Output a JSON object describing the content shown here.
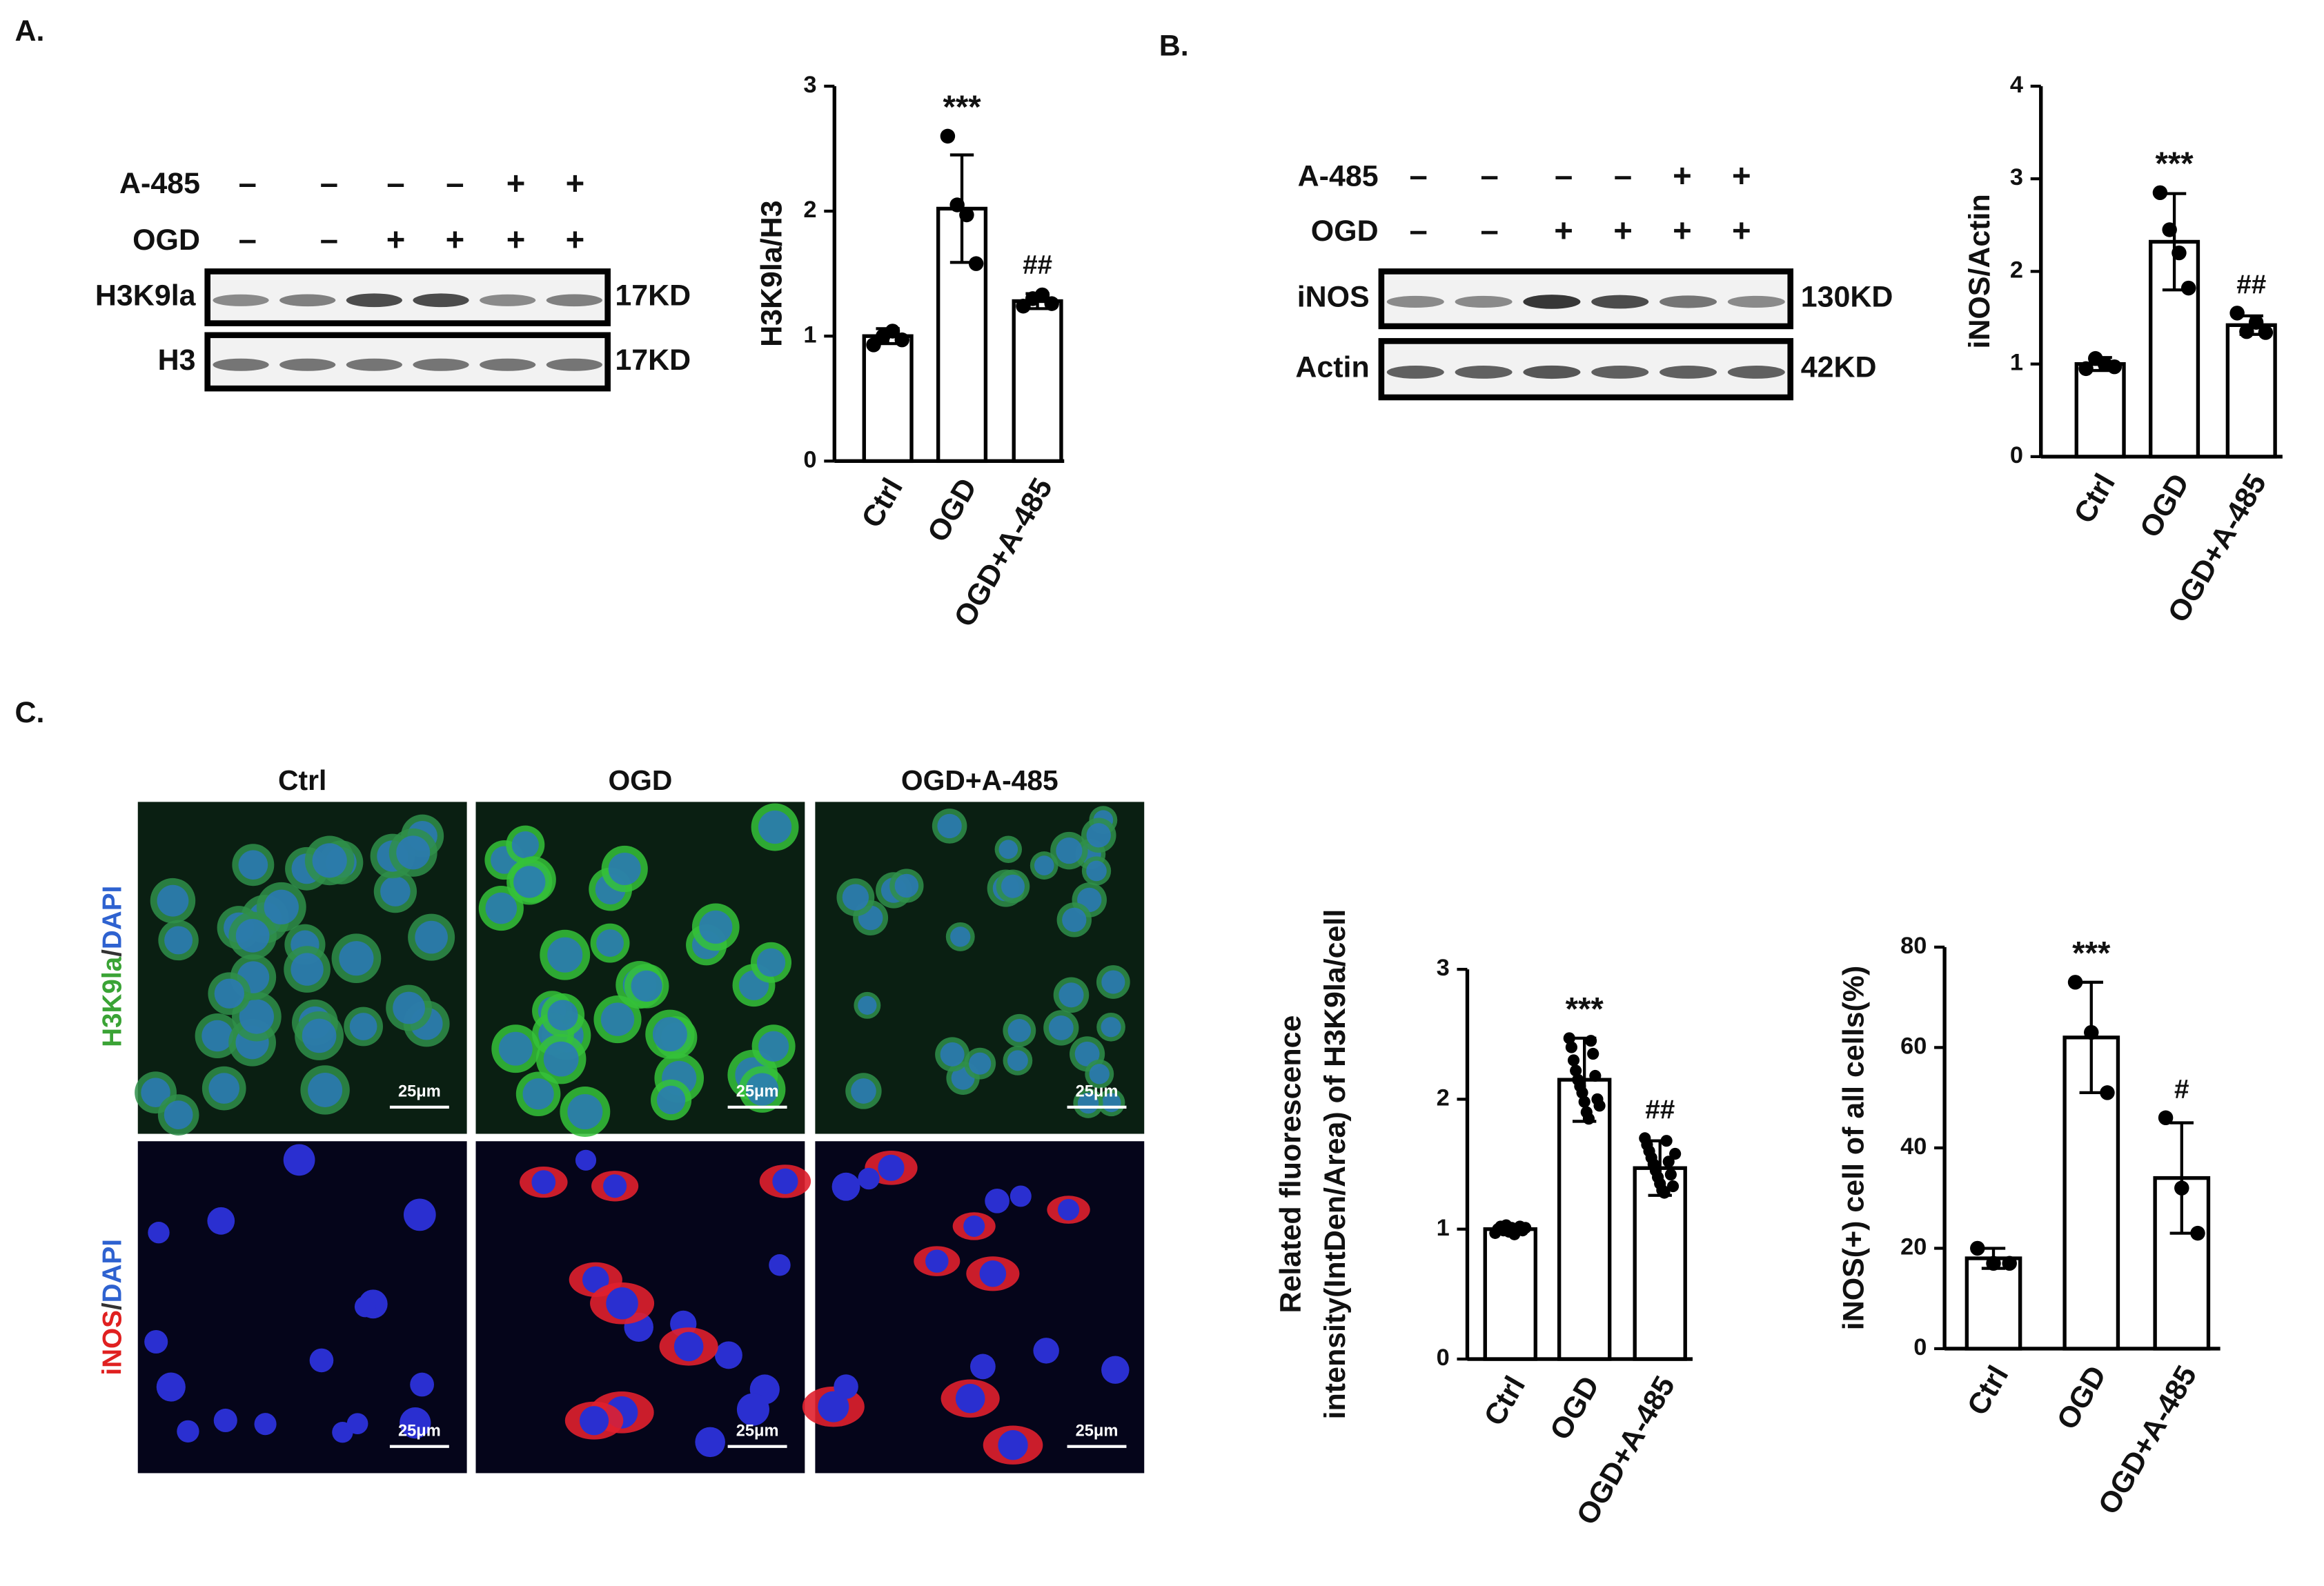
{
  "panel_labels": [
    "A.",
    "B.",
    "C."
  ],
  "blots": [
    {
      "rows": [
        {
          "label": "A-485",
          "signs": [
            "–",
            "–",
            "–",
            "–",
            "+",
            "+"
          ]
        },
        {
          "label": "OGD",
          "signs": [
            "–",
            "–",
            "+",
            "+",
            "+",
            "+"
          ]
        }
      ],
      "bands": [
        {
          "label": "H3K9la",
          "size": "17KD"
        },
        {
          "label": "H3",
          "size": "17KD"
        }
      ]
    },
    {
      "rows": [
        {
          "label": "A-485",
          "signs": [
            "–",
            "–",
            "–",
            "–",
            "+",
            "+"
          ]
        },
        {
          "label": "OGD",
          "signs": [
            "–",
            "–",
            "+",
            "+",
            "+",
            "+"
          ]
        }
      ],
      "bands": [
        {
          "label": "iNOS",
          "size": "130KD"
        },
        {
          "label": "Actin",
          "size": "42KD"
        }
      ]
    }
  ],
  "microscopy": {
    "columns": [
      "Ctrl",
      "OGD",
      "OGD+A-485"
    ],
    "rows": [
      {
        "marker": "H3K9la",
        "separator": "/",
        "stain": "DAPI"
      },
      {
        "marker": "iNOS",
        "separator": "/",
        "stain": "DAPI"
      }
    ],
    "scale_bar": "25μm"
  },
  "chart_data": [
    {
      "type": "bar",
      "ylabel": [
        "H3K9la/H3"
      ],
      "categories": [
        "Ctrl",
        "OGD",
        "OGD+A-485"
      ],
      "values": [
        1.0,
        2.02,
        1.28
      ],
      "errors": [
        0.06,
        0.43,
        0.06
      ],
      "points": [
        [
          0.93,
          1.0,
          1.04,
          0.97
        ],
        [
          2.6,
          2.05,
          1.97,
          1.58
        ],
        [
          1.24,
          1.3,
          1.33,
          1.26
        ]
      ],
      "annotations": [
        null,
        "***",
        "##"
      ],
      "ylim": [
        0,
        3
      ],
      "yticks": [
        0,
        1,
        2,
        3
      ]
    },
    {
      "type": "bar",
      "ylabel": [
        "iNOS/Actin"
      ],
      "categories": [
        "Ctrl",
        "OGD",
        "OGD+A-485"
      ],
      "values": [
        1.0,
        2.32,
        1.42
      ],
      "errors": [
        0.07,
        0.52,
        0.1
      ],
      "points": [
        [
          0.95,
          1.06,
          1.0,
          0.97
        ],
        [
          2.85,
          2.45,
          2.2,
          1.82
        ],
        [
          1.55,
          1.35,
          1.45,
          1.34
        ]
      ],
      "annotations": [
        null,
        "***",
        "##"
      ],
      "ylim": [
        0,
        4
      ],
      "yticks": [
        0,
        1,
        2,
        3,
        4
      ]
    },
    {
      "type": "bar",
      "ylabel": [
        "Related fluorescence",
        "intensity(IntDen/Area) of H3K9la/cell"
      ],
      "categories": [
        "Ctrl",
        "OGD",
        "OGD+A-485"
      ],
      "values": [
        1.0,
        2.15,
        1.47
      ],
      "errors": [
        0.03,
        0.32,
        0.21
      ],
      "points": [
        [
          0.97,
          1.0,
          1.02,
          0.99,
          1.03,
          0.98,
          1.01,
          0.96,
          1.0,
          1.02,
          0.99,
          1.01
        ],
        [
          2.47,
          2.4,
          2.3,
          2.22,
          2.15,
          2.1,
          2.05,
          1.98,
          1.9,
          1.85,
          2.45,
          2.35,
          2.18,
          2.0,
          1.95
        ],
        [
          1.7,
          1.65,
          1.6,
          1.55,
          1.5,
          1.45,
          1.4,
          1.35,
          1.3,
          1.28,
          1.68,
          1.52,
          1.42,
          1.33,
          1.58
        ]
      ],
      "annotations": [
        null,
        "***",
        "##"
      ],
      "ylim": [
        0,
        3
      ],
      "yticks": [
        0,
        1,
        2,
        3
      ]
    },
    {
      "type": "bar",
      "ylabel": [
        "iNOS(+) cell of all cells(%)"
      ],
      "categories": [
        "Ctrl",
        "OGD",
        "OGD+A-485"
      ],
      "values": [
        18,
        62,
        34
      ],
      "errors": [
        2,
        11,
        11
      ],
      "points": [
        [
          20,
          17,
          17
        ],
        [
          73,
          63,
          51
        ],
        [
          46,
          32,
          23
        ]
      ],
      "annotations": [
        null,
        "***",
        "#"
      ],
      "ylim": [
        0,
        80
      ],
      "yticks": [
        0,
        20,
        40,
        60,
        80
      ]
    }
  ]
}
